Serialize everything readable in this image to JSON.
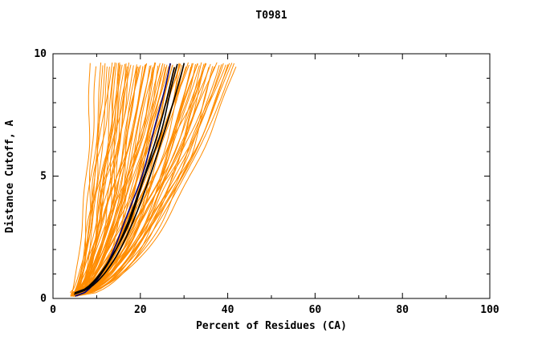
{
  "chart_data": {
    "type": "line",
    "title": "T0981",
    "xlabel": "Percent of Residues (CA)",
    "ylabel": "Distance Cutoff, A",
    "xlim": [
      0,
      100
    ],
    "ylim": [
      0,
      10
    ],
    "x_ticks": [
      0,
      20,
      40,
      60,
      80,
      100
    ],
    "x_minor": [
      10,
      30,
      50,
      70,
      90
    ],
    "y_ticks": [
      0,
      5,
      10
    ],
    "y_minor": [
      1,
      2,
      3,
      4,
      6,
      7,
      8,
      9
    ],
    "grid": false,
    "legend": "none",
    "background": "#ffffff",
    "axis_color": "#000000",
    "curve_format": [
      "x_at_bottom_cutoff",
      "x_at_top_cutoff",
      "shape_exponent"
    ],
    "y_span_of_curves": [
      0.15,
      9.55
    ],
    "series": [
      {
        "id": "orange_model_curves",
        "color": "#ff8c00",
        "width": 1,
        "wiggle": 1,
        "curves": [
          [
            4.2,
            8.5,
            0.6
          ],
          [
            4.8,
            10,
            0.55
          ],
          [
            5.0,
            11,
            0.5
          ],
          [
            4.5,
            12,
            0.62
          ],
          [
            5.2,
            12.5,
            0.48
          ],
          [
            4.0,
            13,
            0.58
          ],
          [
            5.5,
            14,
            0.52
          ],
          [
            4.3,
            14.5,
            0.6
          ],
          [
            4.9,
            15,
            0.45
          ],
          [
            5.1,
            15.5,
            0.55
          ],
          [
            4.6,
            16,
            0.5
          ],
          [
            5.3,
            16.5,
            0.65
          ],
          [
            4.1,
            17,
            0.55
          ],
          [
            4.7,
            17.5,
            0.48
          ],
          [
            5.0,
            18,
            0.6
          ],
          [
            4.4,
            18.5,
            0.52
          ],
          [
            5.4,
            19,
            0.55
          ],
          [
            4.8,
            19.5,
            0.45
          ],
          [
            4.2,
            20,
            0.6
          ],
          [
            5.1,
            20.5,
            0.5
          ],
          [
            4.6,
            21,
            0.55
          ],
          [
            5.3,
            21.5,
            0.62
          ],
          [
            4.0,
            22,
            0.48
          ],
          [
            4.9,
            22.5,
            0.55
          ],
          [
            5.5,
            23,
            0.5
          ],
          [
            4.3,
            23.5,
            0.58
          ],
          [
            4.7,
            24,
            0.52
          ],
          [
            5.2,
            24.5,
            0.6
          ],
          [
            4.5,
            25,
            0.45
          ],
          [
            5.0,
            25.5,
            0.55
          ],
          [
            4.1,
            26,
            0.5
          ],
          [
            5.4,
            26.5,
            0.62
          ],
          [
            4.8,
            27,
            0.55
          ],
          [
            4.4,
            27.5,
            0.48
          ],
          [
            5.1,
            28,
            0.58
          ],
          [
            4.6,
            28.5,
            0.52
          ],
          [
            5.3,
            29,
            0.55
          ],
          [
            4.2,
            29.5,
            0.6
          ],
          [
            4.9,
            30,
            0.5
          ],
          [
            5.5,
            30.5,
            0.55
          ],
          [
            4.3,
            31,
            0.62
          ],
          [
            4.7,
            31.5,
            0.48
          ],
          [
            5.0,
            32,
            0.55
          ],
          [
            4.5,
            32.5,
            0.52
          ],
          [
            5.2,
            33,
            0.6
          ],
          [
            4.0,
            33.5,
            0.55
          ],
          [
            4.8,
            34,
            0.45
          ],
          [
            5.4,
            34.5,
            0.58
          ],
          [
            4.4,
            35,
            0.52
          ],
          [
            5.1,
            35.5,
            0.55
          ],
          [
            4.6,
            36,
            0.6
          ],
          [
            5.3,
            36.5,
            0.5
          ],
          [
            4.2,
            37,
            0.55
          ],
          [
            4.9,
            37.5,
            0.62
          ],
          [
            5.5,
            38,
            0.48
          ],
          [
            4.3,
            38.5,
            0.55
          ],
          [
            4.7,
            39,
            0.52
          ],
          [
            5.0,
            39.5,
            0.58
          ],
          [
            4.5,
            40,
            0.55
          ],
          [
            5.2,
            40.5,
            0.5
          ],
          [
            4.1,
            41,
            0.6
          ],
          [
            4.8,
            41.5,
            0.55
          ],
          [
            5.4,
            42,
            0.52
          ],
          [
            4.4,
            13.5,
            0.7
          ],
          [
            5.0,
            15.2,
            0.68
          ],
          [
            4.6,
            17.2,
            0.72
          ],
          [
            5.2,
            19.2,
            0.66
          ],
          [
            4.2,
            21.2,
            0.7
          ],
          [
            4.9,
            23.2,
            0.68
          ],
          [
            5.5,
            25.2,
            0.72
          ],
          [
            4.3,
            27.2,
            0.66
          ],
          [
            4.7,
            29.2,
            0.7
          ],
          [
            5.1,
            31.2,
            0.68
          ],
          [
            4.5,
            33.2,
            0.72
          ],
          [
            5.3,
            35.2,
            0.66
          ],
          [
            4.0,
            11.5,
            0.42
          ],
          [
            4.8,
            14.2,
            0.4
          ],
          [
            5.2,
            16.8,
            0.44
          ],
          [
            4.4,
            19.8,
            0.42
          ],
          [
            5.0,
            22.8,
            0.4
          ],
          [
            4.6,
            25.8,
            0.44
          ],
          [
            5.3,
            28.8,
            0.42
          ],
          [
            4.2,
            31.8,
            0.4
          ],
          [
            4.9,
            34.8,
            0.44
          ]
        ]
      },
      {
        "id": "navy_highlight_curve",
        "color": "#000080",
        "width": 1.6,
        "wiggle": 0.45,
        "curves": [
          [
            5.1,
            26.8,
            0.55
          ]
        ]
      },
      {
        "id": "black_highlight_curves",
        "color": "#000000",
        "width": 1.6,
        "wiggle": 0.45,
        "curves": [
          [
            5.2,
            30.0,
            0.54
          ],
          [
            5.0,
            28.5,
            0.56
          ],
          [
            4.8,
            27.8,
            0.55
          ]
        ]
      }
    ]
  }
}
